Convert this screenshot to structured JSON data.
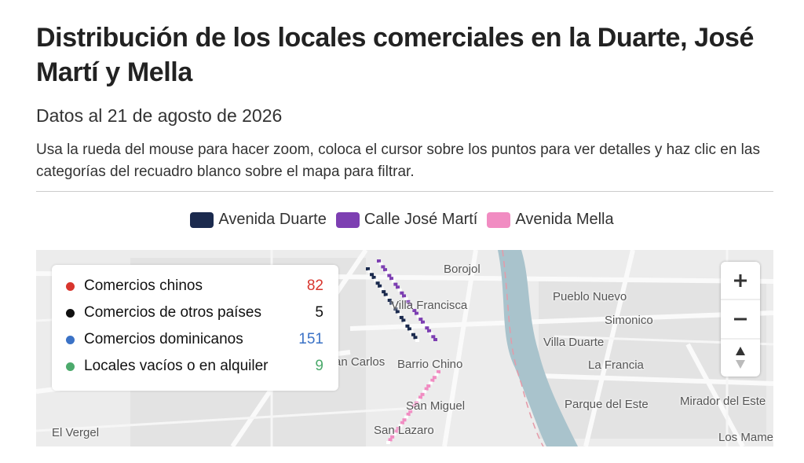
{
  "header": {
    "title": "Distribución de los locales comerciales en la Duarte, José Martí y Mella",
    "subtitle": "Datos al 21 de agosto de 2026",
    "description": "Usa la rueda del mouse para hacer zoom, coloca el cursor sobre los puntos para ver detalles y haz clic en las categorías del recuadro blanco sobre el mapa para filtrar."
  },
  "legend": [
    {
      "label": "Avenida Duarte",
      "color": "#1b2a4e"
    },
    {
      "label": "Calle José Martí",
      "color": "#7d3fb2"
    },
    {
      "label": "Avenida Mella",
      "color": "#f18cc2"
    }
  ],
  "map": {
    "categories": [
      {
        "label": "Comercios chinos",
        "count": 82,
        "color": "#d8352d"
      },
      {
        "label": "Comercios de otros países",
        "count": 5,
        "color": "#111111"
      },
      {
        "label": "Comercios dominicanos",
        "count": 151,
        "color": "#3b72c6"
      },
      {
        "label": "Locales vacíos o en alquiler",
        "count": 9,
        "color": "#4caa6c"
      }
    ],
    "places": [
      "Borojol",
      "Villa Francisca",
      "Pueblo Nuevo",
      "Simonico",
      "Villa Duarte",
      "San Carlos",
      "Barrio Chino",
      "La Francia",
      "San Miguel",
      "Parque del Este",
      "Mirador del Este",
      "El Vergel",
      "San Lazaro",
      "Los Mameyes"
    ]
  }
}
